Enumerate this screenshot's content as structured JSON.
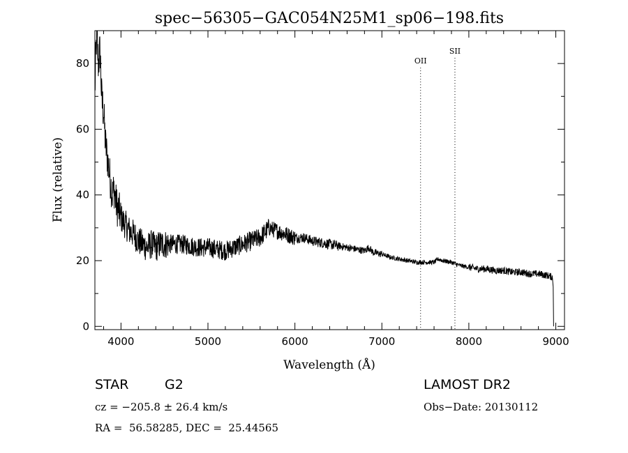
{
  "chart_data": {
    "type": "line",
    "title": "spec−56305−GAC054N25M1_sp06−198.fits",
    "xlabel": "Wavelength (Å)",
    "ylabel": "Flux (relative)",
    "xlim": [
      3700,
      9100
    ],
    "ylim": [
      -1,
      90
    ],
    "x_ticks": [
      4000,
      5000,
      6000,
      7000,
      8000,
      9000
    ],
    "y_ticks": [
      0,
      20,
      40,
      60,
      80
    ],
    "grid": false,
    "line_color": "#000000",
    "series": [
      {
        "points": [
          [
            3700,
            72
          ],
          [
            3720,
            89
          ],
          [
            3740,
            80
          ],
          [
            3760,
            84
          ],
          [
            3780,
            68
          ],
          [
            3800,
            66
          ],
          [
            3820,
            56
          ],
          [
            3840,
            52
          ],
          [
            3860,
            48
          ],
          [
            3880,
            44
          ],
          [
            3900,
            40
          ],
          [
            3920,
            42
          ],
          [
            3940,
            38
          ],
          [
            3960,
            36
          ],
          [
            3980,
            35
          ],
          [
            4000,
            33
          ],
          [
            4050,
            31
          ],
          [
            4100,
            29
          ],
          [
            4150,
            28
          ],
          [
            4200,
            26
          ],
          [
            4250,
            25
          ],
          [
            4300,
            24
          ],
          [
            4350,
            25
          ],
          [
            4400,
            24
          ],
          [
            4450,
            25
          ],
          [
            4500,
            25
          ],
          [
            4600,
            25
          ],
          [
            4700,
            25
          ],
          [
            4800,
            24.5
          ],
          [
            4900,
            24
          ],
          [
            5000,
            24
          ],
          [
            5100,
            23.5
          ],
          [
            5200,
            23
          ],
          [
            5300,
            24
          ],
          [
            5400,
            25
          ],
          [
            5500,
            26
          ],
          [
            5600,
            27
          ],
          [
            5700,
            30
          ],
          [
            5800,
            29
          ],
          [
            5900,
            28
          ],
          [
            6000,
            27
          ],
          [
            6100,
            27
          ],
          [
            6200,
            26
          ],
          [
            6300,
            25.5
          ],
          [
            6400,
            25
          ],
          [
            6500,
            24.5
          ],
          [
            6600,
            24
          ],
          [
            6700,
            23.5
          ],
          [
            6800,
            23
          ],
          [
            6850,
            24
          ],
          [
            6900,
            22.5
          ],
          [
            7000,
            22
          ],
          [
            7100,
            21
          ],
          [
            7200,
            20.5
          ],
          [
            7300,
            20
          ],
          [
            7400,
            19.5
          ],
          [
            7500,
            19.5
          ],
          [
            7600,
            19.5
          ],
          [
            7650,
            20.5
          ],
          [
            7700,
            20
          ],
          [
            7800,
            19.5
          ],
          [
            7900,
            18.5
          ],
          [
            8000,
            18
          ],
          [
            8100,
            17.5
          ],
          [
            8200,
            17.5
          ],
          [
            8300,
            17
          ],
          [
            8400,
            17
          ],
          [
            8500,
            16.5
          ],
          [
            8600,
            16.5
          ],
          [
            8700,
            16
          ],
          [
            8800,
            16
          ],
          [
            8900,
            15.5
          ],
          [
            8960,
            15
          ],
          [
            8970,
            12
          ],
          [
            8975,
            0
          ]
        ]
      }
    ],
    "noise": [
      {
        "x_max": 3800,
        "amp": 7
      },
      {
        "x_max": 4000,
        "amp": 6
      },
      {
        "x_max": 4550,
        "amp": 4.5
      },
      {
        "x_max": 5700,
        "amp": 3
      },
      {
        "x_max": 6000,
        "amp": 2.5
      },
      {
        "x_max": 6500,
        "amp": 1.6
      },
      {
        "x_max": 7000,
        "amp": 1.1
      },
      {
        "x_max": 8000,
        "amp": 0.7
      },
      {
        "x_max": 9000,
        "amp": 1.1
      }
    ],
    "annotations": [
      {
        "label": "OII",
        "x": 7445,
        "label_y": 80
      },
      {
        "label": "SII",
        "x": 7840,
        "label_y": 83
      }
    ]
  },
  "info": {
    "class": "STAR",
    "subclass": "G2",
    "survey": "LAMOST DR2",
    "cz": "cz = −205.8 ± 26.4 km/s",
    "obs_date": "Obs−Date: 20130112",
    "coords": "RA =  56.58285, DEC =  25.44565"
  }
}
